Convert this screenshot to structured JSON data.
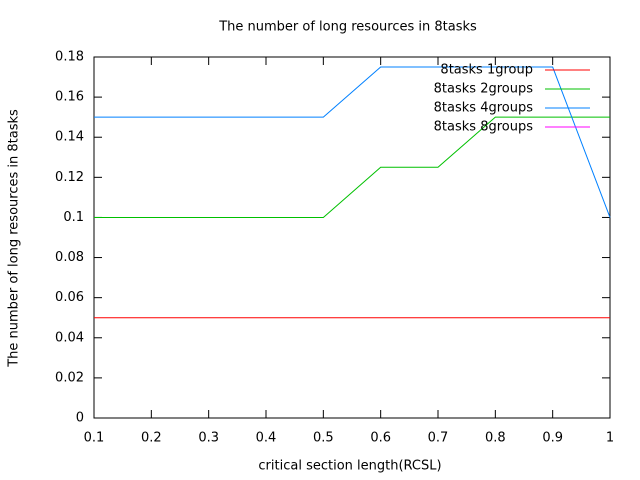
{
  "chart_data": {
    "type": "line",
    "title": "The number of long resources in 8tasks",
    "xlabel": "critical section length(RCSL)",
    "ylabel": "The number of long resources in 8tasks",
    "x": [
      0.1,
      0.2,
      0.3,
      0.4,
      0.5,
      0.6,
      0.7,
      0.8,
      0.9,
      1
    ],
    "series": [
      {
        "name": "8tasks 1group",
        "color": "#ff0000",
        "values": [
          0.05,
          0.05,
          0.05,
          0.05,
          0.05,
          0.05,
          0.05,
          0.05,
          0.05,
          0.05
        ]
      },
      {
        "name": "8tasks 2groups",
        "color": "#00c000",
        "values": [
          0.1,
          0.1,
          0.1,
          0.1,
          0.1,
          0.125,
          0.125,
          0.15,
          0.15,
          0.15
        ]
      },
      {
        "name": "8tasks 4groups",
        "color": "#0080ff",
        "values": [
          0.15,
          0.15,
          0.15,
          0.15,
          0.15,
          0.175,
          0.175,
          0.175,
          0.175,
          0.1
        ]
      },
      {
        "name": "8tasks 8groups",
        "color": "#ff00ff",
        "values": [
          null,
          null,
          null,
          null,
          null,
          null,
          null,
          null,
          null,
          null
        ]
      }
    ],
    "xlim": [
      0.1,
      1
    ],
    "xticks": [
      0.1,
      0.2,
      0.3,
      0.4,
      0.5,
      0.6,
      0.7,
      0.8,
      0.9,
      1
    ],
    "ylim": [
      0,
      0.18
    ],
    "yticks": [
      0,
      0.02,
      0.04,
      0.06,
      0.08,
      0.1,
      0.12,
      0.14,
      0.16,
      0.18
    ],
    "grid": false,
    "legend": "top-right"
  }
}
